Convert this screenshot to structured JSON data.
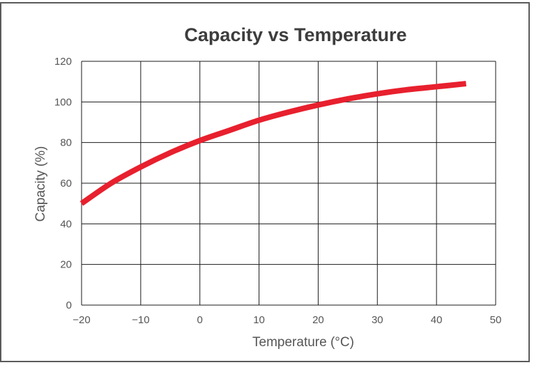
{
  "chart_data": {
    "type": "line",
    "title": "Capacity vs Temperature",
    "xlabel": "Temperature (°C)",
    "ylabel": "Capacity (%)",
    "xlim": [
      -20,
      50
    ],
    "ylim": [
      0,
      120
    ],
    "x_ticks": [
      "−20",
      "−10",
      "0",
      "10",
      "20",
      "30",
      "40",
      "50"
    ],
    "y_ticks": [
      "0",
      "20",
      "40",
      "60",
      "80",
      "100",
      "120"
    ],
    "grid": true,
    "series": [
      {
        "color": "#e8202e",
        "x": [
          -20,
          -15,
          -10,
          -5,
          0,
          5,
          10,
          15,
          20,
          25,
          30,
          35,
          40,
          45
        ],
        "y": [
          50,
          60,
          68,
          75,
          81,
          86,
          91,
          95,
          98.5,
          101.5,
          104,
          106,
          107.5,
          109
        ]
      }
    ]
  }
}
